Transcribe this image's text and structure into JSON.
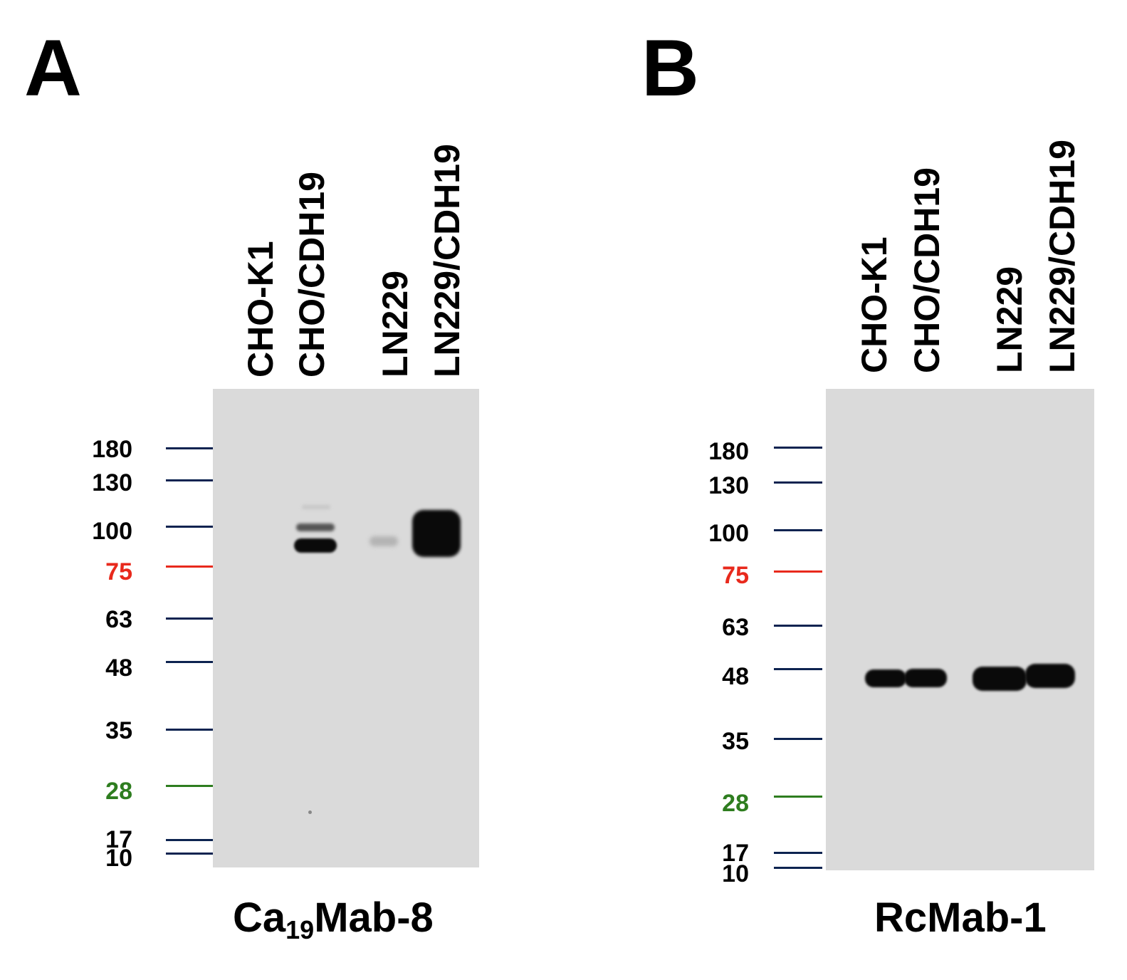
{
  "panels": [
    {
      "letter": "A",
      "lanes": [
        "CHO-K1",
        "CHO/CDH19",
        "LN229",
        "LN229/CDH19"
      ],
      "markers": [
        {
          "label": "180",
          "color": "#0d2350"
        },
        {
          "label": "130",
          "color": "#0d2350"
        },
        {
          "label": "100",
          "color": "#0d2350"
        },
        {
          "label": "75",
          "color": "#e8291c"
        },
        {
          "label": "63",
          "color": "#0d2350"
        },
        {
          "label": "48",
          "color": "#0d2350"
        },
        {
          "label": "35",
          "color": "#0d2350"
        },
        {
          "label": "28",
          "color": "#2e7d1f"
        },
        {
          "label": "17",
          "color": "#0d2350"
        },
        {
          "label": "10",
          "color": "#0d2350"
        }
      ],
      "antibody": {
        "main": "Ca",
        "sub": "19",
        "rest": "Mab-8"
      }
    },
    {
      "letter": "B",
      "lanes": [
        "CHO-K1",
        "CHO/CDH19",
        "LN229",
        "LN229/CDH19"
      ],
      "markers": [
        {
          "label": "180",
          "color": "#0d2350"
        },
        {
          "label": "130",
          "color": "#0d2350"
        },
        {
          "label": "100",
          "color": "#0d2350"
        },
        {
          "label": "75",
          "color": "#e8291c"
        },
        {
          "label": "63",
          "color": "#0d2350"
        },
        {
          "label": "48",
          "color": "#0d2350"
        },
        {
          "label": "35",
          "color": "#0d2350"
        },
        {
          "label": "28",
          "color": "#2e7d1f"
        },
        {
          "label": "17",
          "color": "#0d2350"
        },
        {
          "label": "10",
          "color": "#0d2350"
        }
      ],
      "antibody": {
        "main": "RcMab-1",
        "sub": "",
        "rest": ""
      }
    }
  ]
}
